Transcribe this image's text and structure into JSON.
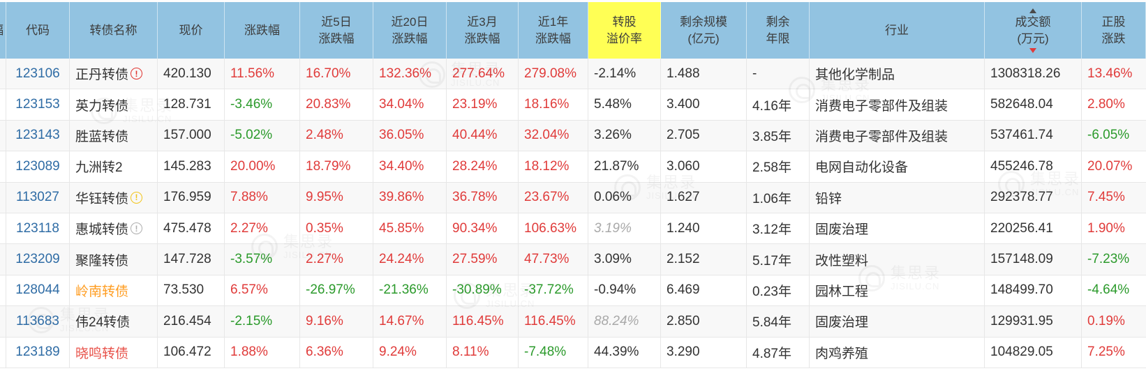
{
  "colors": {
    "header_bg": "#92c3e1",
    "highlight_bg": "#ffff55",
    "up_red": "#e03b3a",
    "down_green": "#2b9a2b",
    "code_blue": "#2f6ca5",
    "name_orange": "#ff9d21",
    "name_red": "#e8524a",
    "estimate_gray": "#a9a9a9"
  },
  "watermark": {
    "cn": "集思录",
    "en": "JISILU.CN"
  },
  "table": {
    "columns": [
      {
        "key": "stub",
        "label": "",
        "clip": "幅"
      },
      {
        "key": "code",
        "label": "代码"
      },
      {
        "key": "name",
        "label": "转债名称"
      },
      {
        "key": "price",
        "label": "现价"
      },
      {
        "key": "chg",
        "label": "涨跌幅"
      },
      {
        "key": "chg5",
        "label": "近5日",
        "label2": "涨跌幅"
      },
      {
        "key": "chg20",
        "label": "近20日",
        "label2": "涨跌幅"
      },
      {
        "key": "chg3m",
        "label": "近3月",
        "label2": "涨跌幅"
      },
      {
        "key": "chg1y",
        "label": "近1年",
        "label2": "涨跌幅"
      },
      {
        "key": "premium",
        "label": "转股",
        "label2": "溢价率",
        "highlight": true
      },
      {
        "key": "size",
        "label": "剩余规模",
        "label2": "(亿元)"
      },
      {
        "key": "years",
        "label": "剩余",
        "label2": "年限"
      },
      {
        "key": "industry",
        "label": "行业"
      },
      {
        "key": "turnover",
        "label": "成交额",
        "label2": "(万元)",
        "sorted": "desc"
      },
      {
        "key": "stock_chg",
        "label": "正股",
        "label2": "涨跌"
      }
    ],
    "rows": [
      {
        "code": "123106",
        "name": "正丹转债",
        "badge": "red",
        "price": "420.130",
        "chg": "11.56%",
        "chg5": "16.70%",
        "chg20": "132.36%",
        "chg3m": "277.64%",
        "chg1y": "279.08%",
        "premium": "-2.14%",
        "size": "1.488",
        "years": "-",
        "industry": "其他化学制品",
        "turnover": "1308318.26",
        "stock_chg": "13.46%"
      },
      {
        "code": "123153",
        "name": "英力转债",
        "price": "128.731",
        "chg": "-3.46%",
        "chg5": "20.83%",
        "chg20": "34.04%",
        "chg3m": "23.19%",
        "chg1y": "18.16%",
        "premium": "5.48%",
        "size": "3.400",
        "years": "4.16年",
        "industry": "消费电子零部件及组装",
        "turnover": "582648.04",
        "stock_chg": "2.80%"
      },
      {
        "code": "123143",
        "name": "胜蓝转债",
        "price": "157.000",
        "chg": "-5.02%",
        "chg5": "2.48%",
        "chg20": "36.05%",
        "chg3m": "40.44%",
        "chg1y": "32.04%",
        "premium": "3.26%",
        "size": "2.705",
        "years": "3.85年",
        "industry": "消费电子零部件及组装",
        "turnover": "537461.74",
        "stock_chg": "-6.05%"
      },
      {
        "code": "123089",
        "name": "九洲转2",
        "price": "145.283",
        "chg": "20.00%",
        "chg5": "18.79%",
        "chg20": "34.40%",
        "chg3m": "28.24%",
        "chg1y": "18.12%",
        "premium": "21.87%",
        "size": "3.060",
        "years": "2.58年",
        "industry": "电网自动化设备",
        "turnover": "455246.78",
        "stock_chg": "20.07%"
      },
      {
        "code": "113027",
        "name": "华钰转债",
        "badge": "yellow",
        "price": "176.959",
        "chg": "7.88%",
        "chg5": "9.95%",
        "chg20": "39.86%",
        "chg3m": "36.78%",
        "chg1y": "23.67%",
        "premium": "0.06%",
        "size": "1.627",
        "years": "1.06年",
        "industry": "铅锌",
        "turnover": "292378.77",
        "stock_chg": "7.45%"
      },
      {
        "code": "123118",
        "name": "惠城转债",
        "badge": "gray",
        "price": "475.478",
        "chg": "2.27%",
        "chg5": "0.35%",
        "chg20": "45.85%",
        "chg3m": "90.34%",
        "chg1y": "106.63%",
        "premium": "3.19%",
        "premium_est": true,
        "size": "1.240",
        "years": "3.12年",
        "industry": "固废治理",
        "turnover": "220256.41",
        "stock_chg": "1.90%"
      },
      {
        "code": "123209",
        "name": "聚隆转债",
        "price": "147.728",
        "chg": "-3.57%",
        "chg5": "2.27%",
        "chg20": "24.24%",
        "chg3m": "27.59%",
        "chg1y": "47.73%",
        "premium": "3.09%",
        "size": "2.152",
        "years": "5.17年",
        "industry": "改性塑料",
        "turnover": "157148.09",
        "stock_chg": "-7.23%"
      },
      {
        "code": "128044",
        "name": "岭南转债",
        "name_color": "orange",
        "price": "73.530",
        "chg": "6.57%",
        "chg5": "-26.97%",
        "chg20": "-21.36%",
        "chg3m": "-30.89%",
        "chg1y": "-37.72%",
        "premium": "-0.94%",
        "size": "6.469",
        "years": "0.23年",
        "industry": "园林工程",
        "turnover": "148499.70",
        "stock_chg": "-4.64%"
      },
      {
        "code": "113683",
        "name": "伟24转债",
        "price": "216.454",
        "chg": "-2.15%",
        "chg5": "9.16%",
        "chg20": "14.67%",
        "chg3m": "116.45%",
        "chg1y": "116.45%",
        "premium": "88.24%",
        "premium_est": true,
        "size": "2.850",
        "years": "5.84年",
        "industry": "固废治理",
        "turnover": "129931.95",
        "stock_chg": "0.19%"
      },
      {
        "code": "123189",
        "name": "晓鸣转债",
        "name_color": "red",
        "price": "106.472",
        "chg": "1.88%",
        "chg5": "6.36%",
        "chg20": "9.24%",
        "chg3m": "8.11%",
        "chg1y": "-7.48%",
        "premium": "44.39%",
        "size": "3.290",
        "years": "4.87年",
        "industry": "肉鸡养殖",
        "turnover": "104829.05",
        "stock_chg": "7.25%"
      }
    ]
  }
}
